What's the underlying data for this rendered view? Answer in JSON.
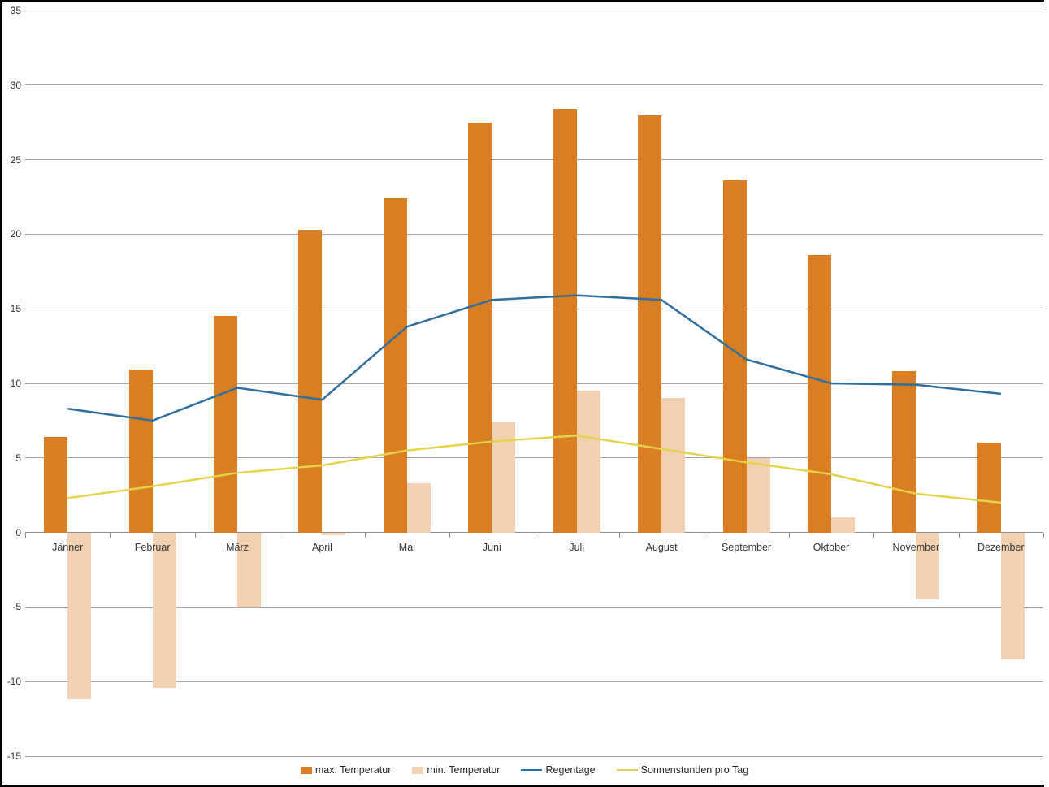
{
  "chart_data": {
    "type": "bar",
    "subtype": "combo-bar-line",
    "title": "",
    "xlabel": "",
    "ylabel": "",
    "categories": [
      "Jänner",
      "Februar",
      "März",
      "April",
      "Mai",
      "Juni",
      "Juli",
      "August",
      "September",
      "Oktober",
      "November",
      "Dezember"
    ],
    "series": [
      {
        "name": "max. Temperatur",
        "type": "bar",
        "color": "#d97e23",
        "values": [
          6.4,
          10.9,
          14.5,
          20.3,
          22.4,
          27.5,
          28.4,
          28.0,
          23.6,
          18.6,
          10.8,
          6.0
        ]
      },
      {
        "name": "min. Temperatur",
        "type": "bar",
        "color": "#f2d0b0",
        "values": [
          -11.2,
          -10.4,
          -5.0,
          -0.2,
          3.3,
          7.4,
          9.5,
          9.0,
          5.0,
          1.0,
          -4.5,
          -8.5
        ]
      },
      {
        "name": "Regentage",
        "type": "line",
        "color": "#2e6f9e",
        "values": [
          8.3,
          7.5,
          9.7,
          8.9,
          13.8,
          15.6,
          15.9,
          15.6,
          11.6,
          10.0,
          9.9,
          9.3
        ]
      },
      {
        "name": "Sonnenstunden pro Tag",
        "type": "line",
        "color": "#e2d44b",
        "values": [
          2.3,
          3.1,
          4.0,
          4.5,
          5.5,
          6.1,
          6.5,
          5.6,
          4.7,
          3.9,
          2.6,
          2.0
        ]
      }
    ],
    "y_axis": {
      "min": -15,
      "max": 35,
      "step": 5,
      "tick_labels": [
        "35",
        "30",
        "25",
        "20",
        "15",
        "10",
        "5",
        "0",
        "-5",
        "-10",
        "-15"
      ]
    },
    "grid": true,
    "legend_position": "bottom"
  }
}
